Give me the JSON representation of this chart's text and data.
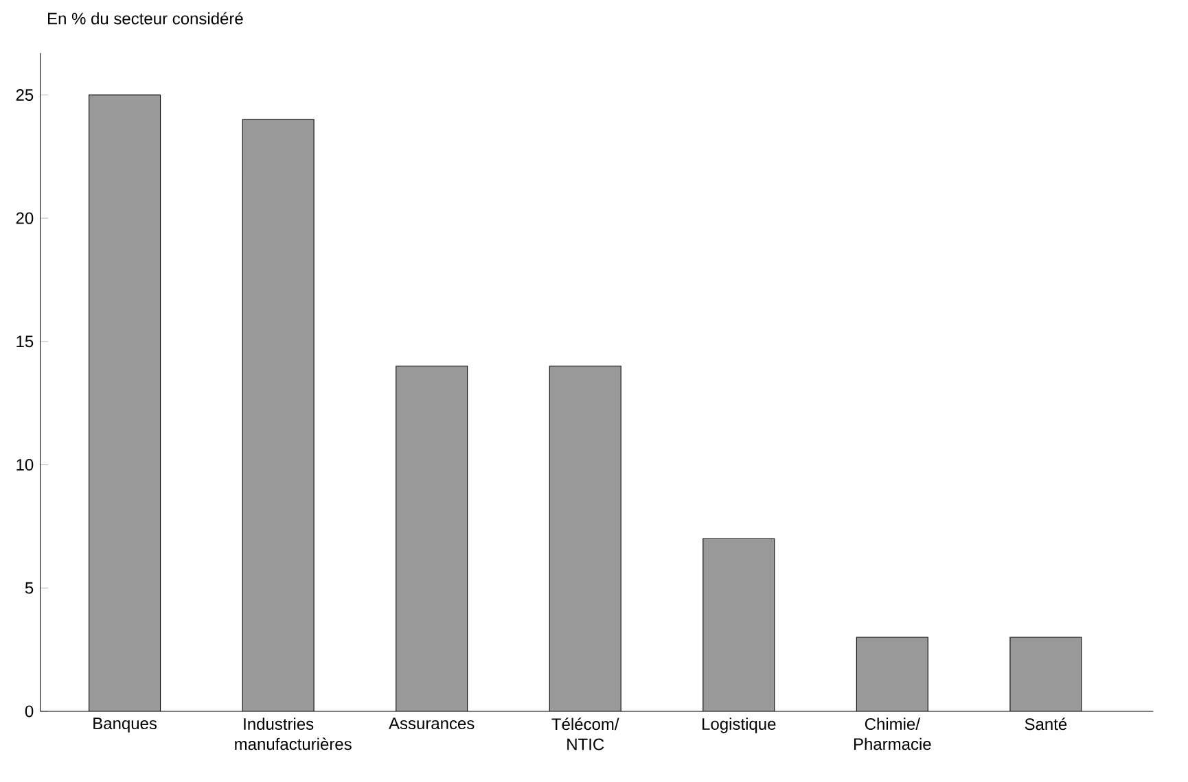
{
  "chart_data": {
    "type": "bar",
    "ylabel": "En % du secteur considéré",
    "categories": [
      "Banques",
      "Industries manufacturières",
      "Assurances",
      "Télécom/ NTIC",
      "Logistique",
      "Chimie/ Pharmacie",
      "Santé"
    ],
    "values": [
      25,
      24,
      14,
      14,
      7,
      3,
      3
    ],
    "color": "#999999",
    "ylim": [
      0,
      26.7
    ],
    "yticks": [
      0,
      5,
      10,
      15,
      20,
      25
    ],
    "grid": false
  }
}
